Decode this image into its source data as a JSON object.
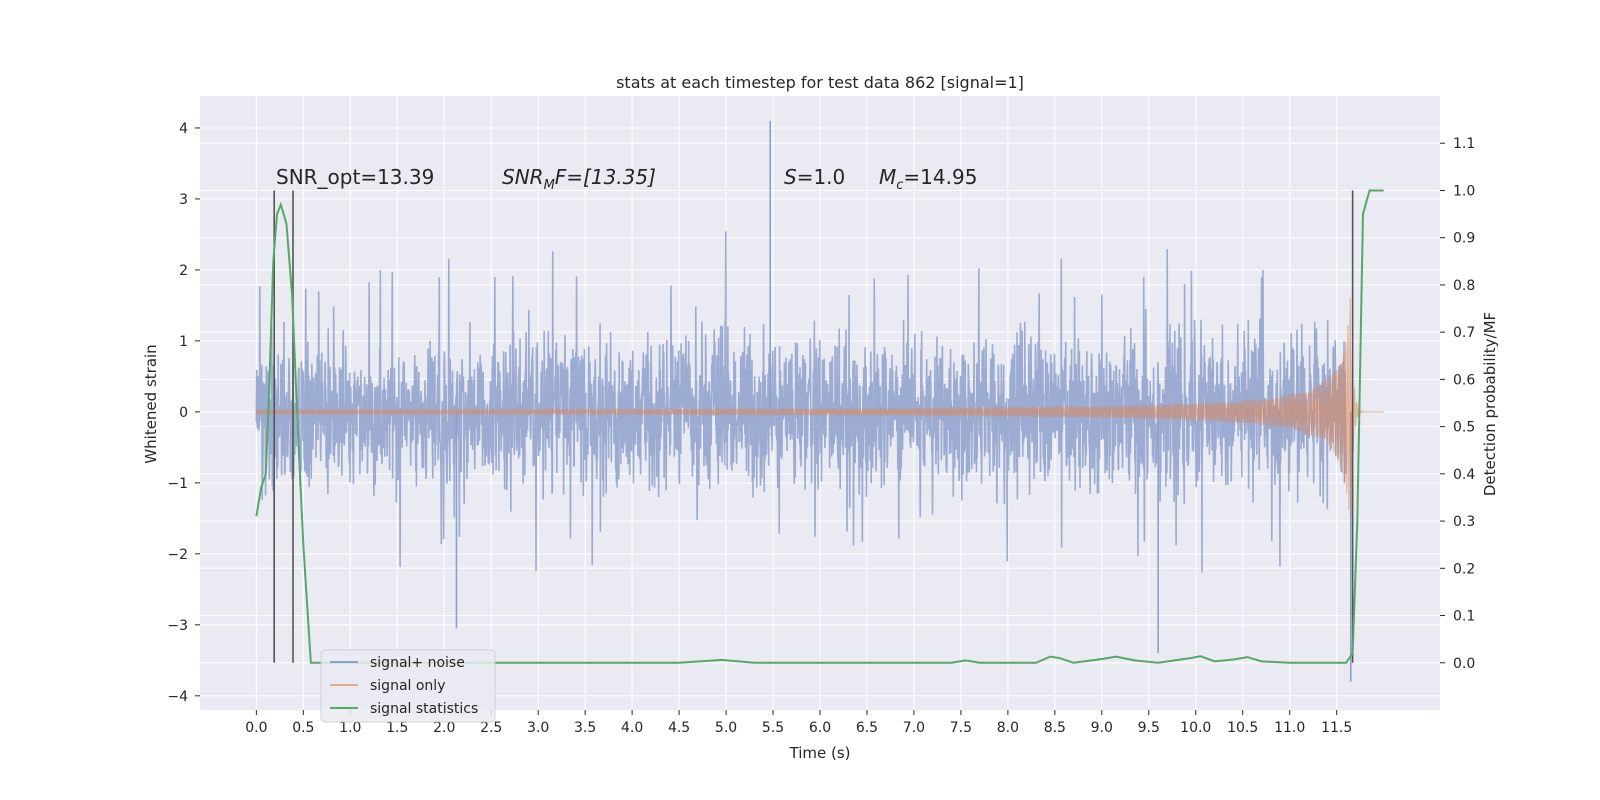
{
  "chart_data": {
    "type": "line",
    "title": "stats at each timestep for test data 862 [signal=1]",
    "xlabel": "Time (s)",
    "ylabel": "Whitened strain",
    "y2label": "Detection probability/MF",
    "xlim": [
      -0.6,
      12.6
    ],
    "ylim": [
      -4.2,
      4.45
    ],
    "y2lim": [
      -0.1,
      1.2
    ],
    "grid": true,
    "x_ticks": [
      "0.0",
      "0.5",
      "1.0",
      "1.5",
      "2.0",
      "2.5",
      "3.0",
      "3.5",
      "4.0",
      "4.5",
      "5.0",
      "5.5",
      "6.0",
      "6.5",
      "7.0",
      "7.5",
      "8.0",
      "8.5",
      "9.0",
      "9.5",
      "10.0",
      "10.5",
      "11.0",
      "11.5"
    ],
    "y_ticks": [
      -4,
      -3,
      -2,
      -1,
      0,
      1,
      2,
      3,
      4
    ],
    "y2_ticks": [
      "0.0",
      "0.1",
      "0.2",
      "0.3",
      "0.4",
      "0.5",
      "0.6",
      "0.7",
      "0.8",
      "0.9",
      "1.0",
      "1.1"
    ],
    "annotations": {
      "snr_opt": "SNR_opt=13.39",
      "snr_mf_main": "SNR",
      "snr_mf_sub": "M",
      "snr_mf_rest": "F=[13.35]",
      "s_main": "S",
      "s_rest": "=1.0",
      "mc_main": "M",
      "mc_sub": "c",
      "mc_rest": "=14.95"
    },
    "vlines_x": [
      0.19,
      0.39,
      11.67
    ],
    "legend": {
      "placement": "lower-left",
      "entries": [
        "signal+ noise",
        "signal only",
        "signal statistics"
      ]
    },
    "series": [
      {
        "name": "signal+ noise",
        "color": "#8da0cb",
        "x": [
          0.0,
          11.6
        ],
        "typical_range": [
          -1.3,
          1.3
        ],
        "extremes": [
          {
            "x": 5.47,
            "y": 4.1
          },
          {
            "x": 2.13,
            "y": -3.05
          },
          {
            "x": 9.6,
            "y": -3.4
          },
          {
            "x": 11.65,
            "y": -3.8
          }
        ]
      },
      {
        "name": "signal only",
        "color": "#dd8452",
        "x": [
          0.0,
          12.0
        ],
        "chirp_peak_x": 11.65,
        "peak_amplitude": 1.8
      },
      {
        "name": "signal statistics",
        "color": "#55a868",
        "x": [
          0.0,
          0.05,
          0.1,
          0.13,
          0.18,
          0.22,
          0.26,
          0.32,
          0.38,
          0.44,
          0.5,
          0.58,
          1.0,
          4.5,
          4.8,
          4.95,
          5.3,
          7.4,
          7.55,
          7.7,
          8.3,
          8.45,
          8.55,
          8.7,
          9.0,
          9.15,
          9.35,
          9.6,
          9.95,
          10.05,
          10.2,
          10.4,
          10.55,
          10.7,
          11.0,
          11.6,
          11.67,
          11.72,
          11.78,
          11.85,
          11.95,
          12.0
        ],
        "y": [
          0.31,
          0.37,
          0.4,
          0.54,
          0.85,
          0.95,
          0.97,
          0.93,
          0.78,
          0.5,
          0.25,
          0.0,
          0.0,
          0.0,
          0.004,
          0.006,
          0.0,
          0.0,
          0.005,
          0.0,
          0.0,
          0.013,
          0.01,
          0.0,
          0.008,
          0.013,
          0.005,
          0.0,
          0.01,
          0.014,
          0.003,
          0.007,
          0.012,
          0.003,
          0.0,
          0.0,
          0.02,
          0.3,
          0.95,
          1.0,
          1.0,
          1.0
        ]
      }
    ]
  }
}
